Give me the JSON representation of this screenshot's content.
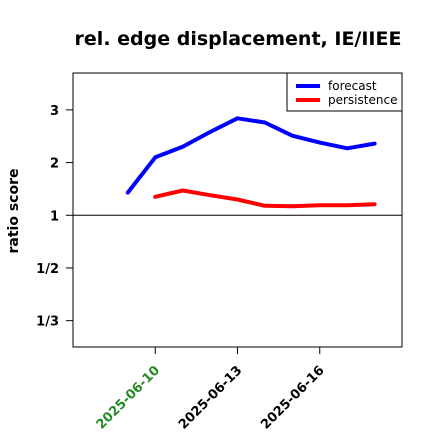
{
  "chart_data": {
    "type": "line",
    "title": "rel. edge displacement, IE/IIEE",
    "xlabel": "",
    "ylabel": "ratio score",
    "y_scale": "reciprocal",
    "y_ticks": [
      {
        "value": 0.3333,
        "label": "1/3"
      },
      {
        "value": 0.5,
        "label": "1/2"
      },
      {
        "value": 1,
        "label": "1"
      },
      {
        "value": 2,
        "label": "2"
      },
      {
        "value": 3,
        "label": "3"
      }
    ],
    "ylim": [
      0.2857,
      3.7
    ],
    "x_ticks": [
      {
        "value": "2025-06-10",
        "label": "2025-06-10",
        "color": "#228B22"
      },
      {
        "value": "2025-06-13",
        "label": "2025-06-13",
        "color": "#000000"
      },
      {
        "value": "2025-06-16",
        "label": "2025-06-16",
        "color": "#000000"
      }
    ],
    "xlim": [
      "2025-06-07",
      "2025-06-19"
    ],
    "reference_line": 1,
    "grid": false,
    "legend_position": "top-right",
    "series": [
      {
        "name": "forecast",
        "color": "#0000FF",
        "x": [
          "2025-06-09",
          "2025-06-10",
          "2025-06-11",
          "2025-06-12",
          "2025-06-13",
          "2025-06-14",
          "2025-06-15",
          "2025-06-16",
          "2025-06-17",
          "2025-06-18"
        ],
        "y": [
          1.43,
          2.1,
          2.3,
          2.58,
          2.84,
          2.76,
          2.51,
          2.38,
          2.27,
          2.36
        ]
      },
      {
        "name": "persistence",
        "color": "#FF0000",
        "x": [
          "2025-06-10",
          "2025-06-11",
          "2025-06-12",
          "2025-06-13",
          "2025-06-14",
          "2025-06-15",
          "2025-06-16",
          "2025-06-17",
          "2025-06-18"
        ],
        "y": [
          1.35,
          1.47,
          1.38,
          1.3,
          1.18,
          1.17,
          1.19,
          1.19,
          1.21
        ]
      }
    ]
  }
}
